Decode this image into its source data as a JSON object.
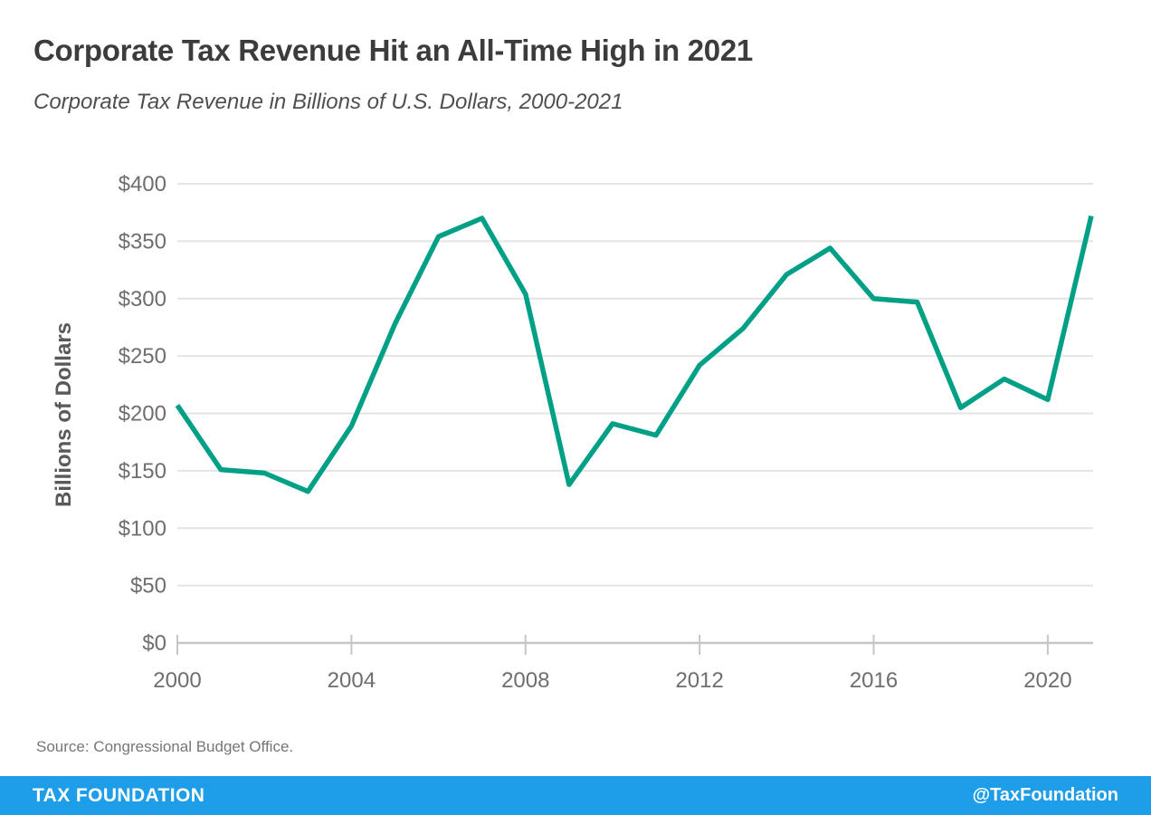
{
  "header": {
    "title": "Corporate Tax Revenue Hit an All-Time High in 2021",
    "subtitle": "Corporate Tax Revenue in Billions of U.S. Dollars, 2000-2021"
  },
  "chart_data": {
    "type": "line",
    "title": "Corporate Tax Revenue Hit an All-Time High in 2021",
    "subtitle": "Corporate Tax Revenue in Billions of U.S. Dollars, 2000-2021",
    "xlabel": "",
    "ylabel": "Billions of Dollars",
    "x": [
      2000,
      2001,
      2002,
      2003,
      2004,
      2005,
      2006,
      2007,
      2008,
      2009,
      2010,
      2011,
      2012,
      2013,
      2014,
      2015,
      2016,
      2017,
      2018,
      2019,
      2020,
      2021
    ],
    "series": [
      {
        "name": "Corporate Tax Revenue (billions USD)",
        "values": [
          207,
          151,
          148,
          132,
          189,
          278,
          354,
          370,
          304,
          138,
          191,
          181,
          242,
          274,
          321,
          344,
          300,
          297,
          205,
          230,
          212,
          372
        ]
      }
    ],
    "ylim": [
      0,
      400
    ],
    "ytick_step": 50,
    "ytick_labels": [
      "$0",
      "$50",
      "$100",
      "$150",
      "$200",
      "$250",
      "$300",
      "$350",
      "$400"
    ],
    "xticks": [
      2000,
      2004,
      2008,
      2012,
      2016,
      2020
    ],
    "grid": "horizontal",
    "legend": "none",
    "line_color": "#00A087",
    "gridline_color": "#e4e4e4",
    "axis_color": "#c6c6c6"
  },
  "source": {
    "text": "Source: Congressional Budget Office."
  },
  "footer": {
    "brand": "TAX FOUNDATION",
    "handle": "@TaxFoundation",
    "bg_color": "#1E9DE8"
  }
}
